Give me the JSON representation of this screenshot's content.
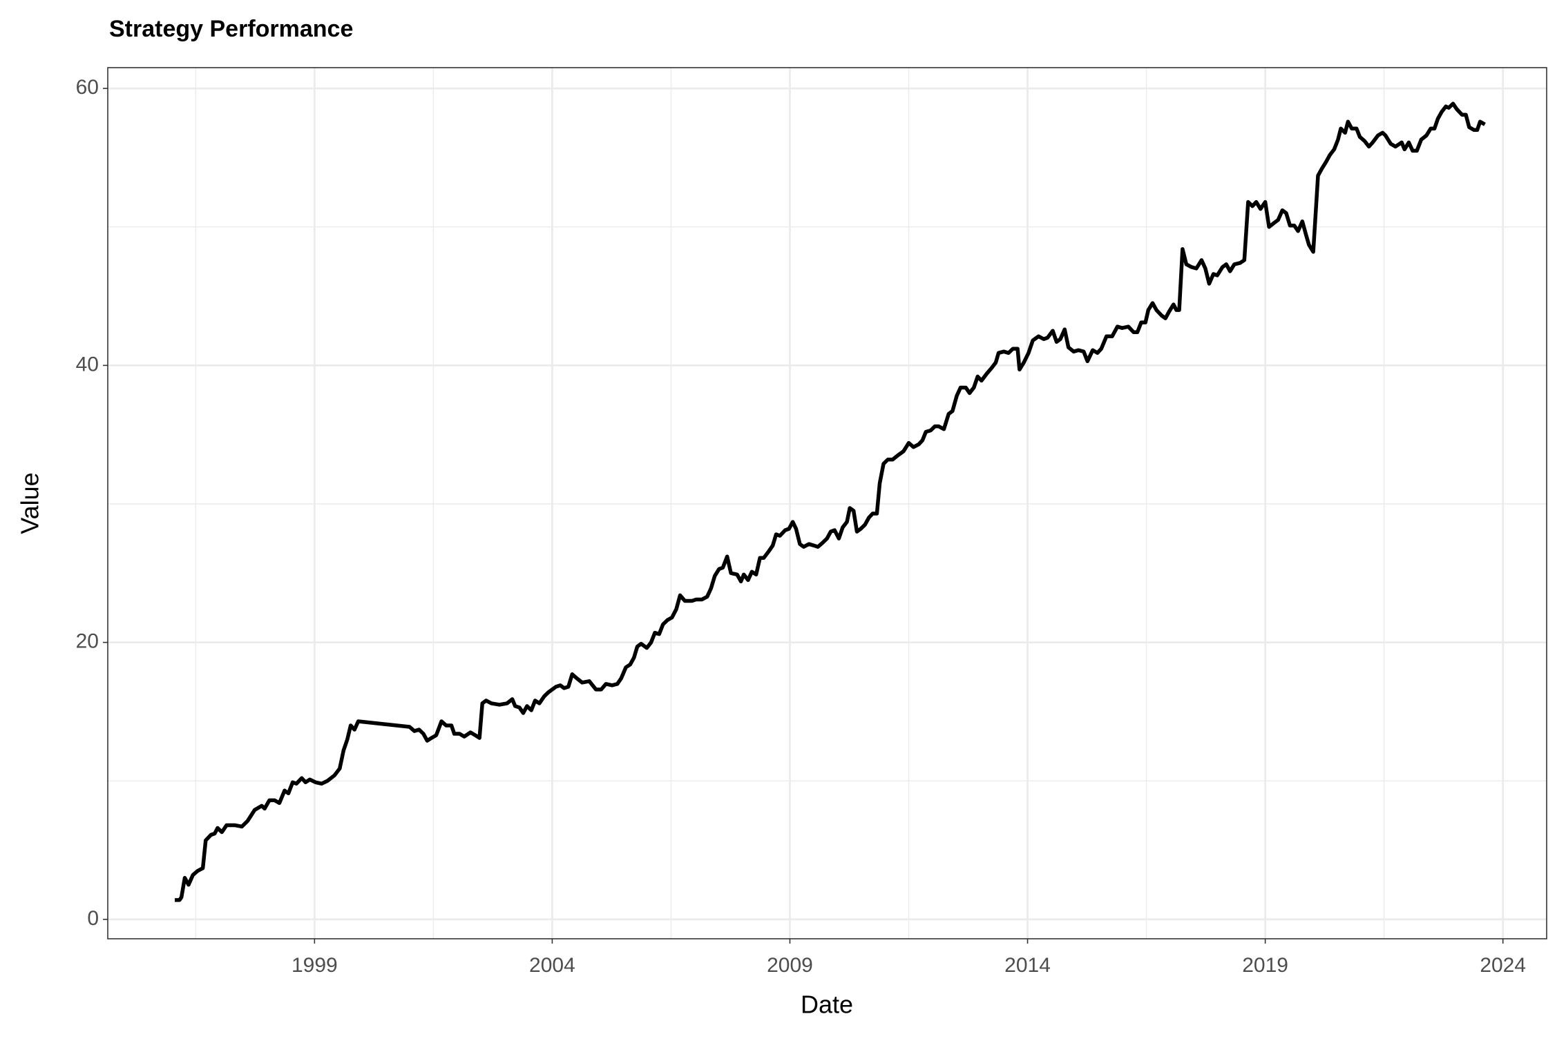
{
  "chart_data": {
    "type": "line",
    "title": "Strategy Performance",
    "x_label": "Date",
    "y_label": "Value",
    "x": [
      1996.06,
      1996.16,
      1996.2,
      1996.27,
      1996.35,
      1996.44,
      1996.54,
      1996.65,
      1996.71,
      1996.82,
      1996.9,
      1996.96,
      1997.05,
      1997.15,
      1997.32,
      1997.47,
      1997.59,
      1997.74,
      1997.89,
      1997.95,
      1998.05,
      1998.16,
      1998.26,
      1998.37,
      1998.45,
      1998.54,
      1998.62,
      1998.73,
      1998.81,
      1998.9,
      1999.02,
      1999.15,
      1999.27,
      1999.42,
      1999.53,
      1999.61,
      1999.69,
      1999.76,
      1999.84,
      1999.92,
      2001.0,
      2001.1,
      2001.2,
      2001.29,
      2001.37,
      2001.46,
      2001.56,
      2001.67,
      2001.77,
      2001.88,
      2001.94,
      2002.05,
      2002.15,
      2002.28,
      2002.38,
      2002.47,
      2002.53,
      2002.61,
      2002.72,
      2002.89,
      2003.05,
      2003.16,
      2003.22,
      2003.31,
      2003.39,
      2003.47,
      2003.56,
      2003.64,
      2003.73,
      2003.83,
      2003.92,
      2004.0,
      2004.08,
      2004.17,
      2004.25,
      2004.34,
      2004.42,
      2004.52,
      2004.63,
      2004.78,
      2004.92,
      2005.03,
      2005.13,
      2005.26,
      2005.37,
      2005.45,
      2005.55,
      2005.64,
      2005.72,
      2005.79,
      2005.87,
      2005.99,
      2006.08,
      2006.16,
      2006.25,
      2006.33,
      2006.42,
      2006.52,
      2006.61,
      2006.69,
      2006.79,
      2006.94,
      2007.03,
      2007.15,
      2007.26,
      2007.34,
      2007.42,
      2007.51,
      2007.59,
      2007.68,
      2007.76,
      2007.89,
      2007.97,
      2008.03,
      2008.12,
      2008.2,
      2008.29,
      2008.37,
      2008.45,
      2008.56,
      2008.64,
      2008.71,
      2008.79,
      2008.9,
      2008.98,
      2009.06,
      2009.13,
      2009.21,
      2009.29,
      2009.4,
      2009.5,
      2009.59,
      2009.69,
      2009.78,
      2009.86,
      2009.94,
      2010.03,
      2010.11,
      2010.2,
      2010.26,
      2010.34,
      2010.41,
      2010.49,
      2010.58,
      2010.66,
      2010.74,
      2010.83,
      2010.89,
      2010.97,
      2011.06,
      2011.16,
      2011.27,
      2011.39,
      2011.5,
      2011.6,
      2011.71,
      2011.79,
      2011.86,
      2011.96,
      2012.05,
      2012.13,
      2012.24,
      2012.34,
      2012.42,
      2012.51,
      2012.59,
      2012.7,
      2012.78,
      2012.87,
      2012.95,
      2013.03,
      2013.14,
      2013.24,
      2013.33,
      2013.39,
      2013.5,
      2013.6,
      2013.69,
      2013.79,
      2013.83,
      2013.92,
      2014.02,
      2014.11,
      2014.23,
      2014.34,
      2014.42,
      2014.53,
      2014.61,
      2014.69,
      2014.78,
      2014.86,
      2014.97,
      2015.07,
      2015.18,
      2015.26,
      2015.37,
      2015.47,
      2015.55,
      2015.66,
      2015.78,
      2015.89,
      2015.99,
      2016.12,
      2016.23,
      2016.31,
      2016.39,
      2016.48,
      2016.54,
      2016.63,
      2016.71,
      2016.82,
      2016.9,
      2016.98,
      2017.07,
      2017.13,
      2017.19,
      2017.26,
      2017.34,
      2017.45,
      2017.55,
      2017.66,
      2017.74,
      2017.82,
      2017.91,
      2017.99,
      2018.1,
      2018.18,
      2018.26,
      2018.35,
      2018.47,
      2018.56,
      2018.64,
      2018.73,
      2018.81,
      2018.9,
      2019.0,
      2019.08,
      2019.19,
      2019.27,
      2019.36,
      2019.44,
      2019.52,
      2019.61,
      2019.69,
      2019.78,
      2019.86,
      2019.92,
      2020.01,
      2020.11,
      2020.19,
      2020.28,
      2020.36,
      2020.45,
      2020.53,
      2020.59,
      2020.68,
      2020.74,
      2020.82,
      2020.92,
      2020.99,
      2021.09,
      2021.18,
      2021.26,
      2021.37,
      2021.47,
      2021.53,
      2021.64,
      2021.74,
      2021.87,
      2021.93,
      2022.02,
      2022.1,
      2022.19,
      2022.28,
      2022.39,
      2022.48,
      2022.56,
      2022.63,
      2022.71,
      2022.8,
      2022.86,
      2022.95,
      2023.03,
      2023.14,
      2023.22,
      2023.29,
      2023.39,
      2023.46,
      2023.52,
      2023.62
    ],
    "values": [
      1.4,
      1.4,
      1.6,
      3.0,
      2.5,
      3.2,
      3.5,
      3.7,
      5.7,
      6.1,
      6.2,
      6.6,
      6.3,
      6.8,
      6.8,
      6.7,
      7.1,
      7.9,
      8.2,
      8.0,
      8.6,
      8.6,
      8.4,
      9.3,
      9.1,
      9.9,
      9.8,
      10.2,
      9.9,
      10.1,
      9.9,
      9.8,
      10.0,
      10.4,
      10.9,
      12.2,
      13.0,
      14.0,
      13.7,
      14.3,
      13.9,
      13.6,
      13.7,
      13.4,
      12.9,
      13.1,
      13.3,
      14.3,
      14.0,
      14.0,
      13.4,
      13.4,
      13.2,
      13.5,
      13.3,
      13.1,
      15.6,
      15.8,
      15.6,
      15.5,
      15.6,
      15.9,
      15.4,
      15.3,
      14.9,
      15.4,
      15.1,
      15.8,
      15.6,
      16.1,
      16.4,
      16.6,
      16.8,
      16.9,
      16.7,
      16.8,
      17.7,
      17.4,
      17.1,
      17.2,
      16.6,
      16.6,
      17.0,
      16.9,
      17.0,
      17.4,
      18.2,
      18.4,
      18.9,
      19.7,
      19.9,
      19.6,
      20.0,
      20.7,
      20.6,
      21.3,
      21.6,
      21.8,
      22.4,
      23.4,
      23.0,
      23.0,
      23.1,
      23.1,
      23.3,
      23.9,
      24.8,
      25.3,
      25.4,
      26.2,
      25.0,
      24.9,
      24.4,
      24.9,
      24.5,
      25.1,
      24.9,
      26.1,
      26.1,
      26.6,
      27.0,
      27.8,
      27.7,
      28.1,
      28.2,
      28.7,
      28.2,
      27.1,
      26.9,
      27.1,
      27.0,
      26.9,
      27.2,
      27.5,
      28.0,
      28.1,
      27.5,
      28.3,
      28.7,
      29.7,
      29.5,
      28.0,
      28.2,
      28.5,
      29.0,
      29.3,
      29.3,
      31.5,
      32.9,
      33.2,
      33.2,
      33.5,
      33.8,
      34.4,
      34.1,
      34.3,
      34.6,
      35.2,
      35.3,
      35.6,
      35.6,
      35.4,
      36.5,
      36.7,
      37.8,
      38.4,
      38.4,
      38.0,
      38.4,
      39.2,
      38.9,
      39.4,
      39.8,
      40.2,
      40.9,
      41.0,
      40.9,
      41.2,
      41.2,
      39.7,
      40.2,
      40.9,
      41.8,
      42.1,
      41.9,
      42.0,
      42.5,
      41.7,
      41.9,
      42.6,
      41.3,
      41.0,
      41.1,
      41.0,
      40.3,
      41.1,
      40.9,
      41.2,
      42.1,
      42.1,
      42.8,
      42.7,
      42.8,
      42.4,
      42.4,
      43.1,
      43.1,
      44.0,
      44.5,
      44.0,
      43.6,
      43.4,
      43.9,
      44.4,
      44.0,
      44.0,
      48.4,
      47.3,
      47.1,
      47.0,
      47.6,
      47.0,
      45.9,
      46.6,
      46.5,
      47.1,
      47.3,
      46.8,
      47.3,
      47.4,
      47.6,
      51.8,
      51.5,
      51.8,
      51.3,
      51.8,
      50.0,
      50.3,
      50.5,
      51.2,
      51.0,
      50.1,
      50.1,
      49.7,
      50.4,
      49.4,
      48.7,
      48.2,
      53.7,
      54.2,
      54.7,
      55.2,
      55.6,
      56.3,
      57.1,
      56.8,
      57.6,
      57.1,
      57.1,
      56.5,
      56.2,
      55.8,
      56.1,
      56.6,
      56.8,
      56.6,
      56.0,
      55.8,
      56.1,
      55.6,
      56.1,
      55.5,
      55.5,
      56.3,
      56.6,
      57.1,
      57.1,
      57.8,
      58.3,
      58.7,
      58.6,
      58.9,
      58.5,
      58.1,
      58.1,
      57.2,
      57.0,
      57.0,
      57.6,
      57.4
    ],
    "color": "#000000",
    "xlim": [
      1994.65,
      2024.92
    ],
    "ylim": [
      -1.4,
      61.5
    ],
    "xticks": [
      1999,
      2004,
      2009,
      2014,
      2019,
      2024
    ],
    "yticks": [
      0,
      20,
      40,
      60
    ],
    "grid": true
  }
}
